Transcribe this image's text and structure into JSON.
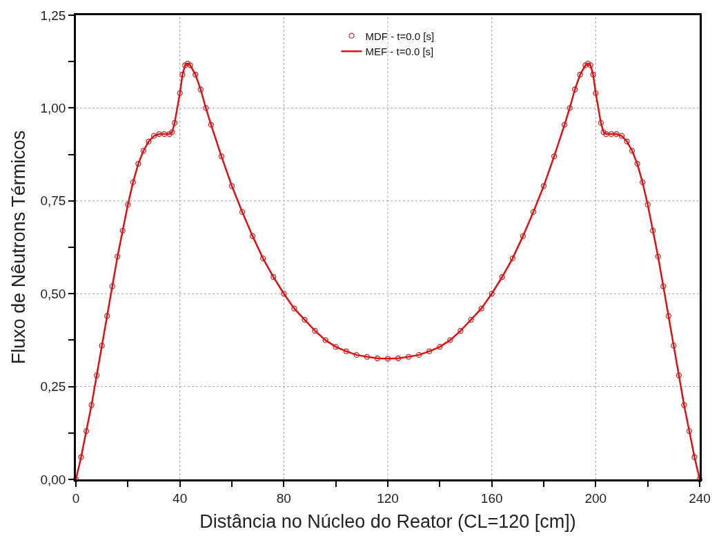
{
  "chart_data": {
    "type": "line",
    "xlabel": "Distância no Núcleo do Reator (CL=120 [cm])",
    "ylabel": "Fluxo de Nêutrons Térmicos",
    "x": [
      0,
      2,
      4,
      6,
      8,
      10,
      12,
      14,
      16,
      18,
      20,
      22,
      24,
      26,
      28,
      30,
      32,
      34,
      36,
      37,
      38,
      40,
      41,
      42,
      43,
      44,
      46,
      48,
      50,
      52,
      56,
      60,
      64,
      68,
      72,
      76,
      80,
      84,
      88,
      92,
      96,
      100,
      104,
      108,
      112,
      116,
      120,
      124,
      128,
      132,
      136,
      140,
      144,
      148,
      152,
      156,
      160,
      164,
      168,
      172,
      176,
      180,
      184,
      188,
      190,
      192,
      194,
      196,
      197,
      198,
      199,
      200,
      202,
      203,
      204,
      206,
      208,
      210,
      212,
      214,
      216,
      218,
      220,
      222,
      224,
      226,
      228,
      230,
      232,
      234,
      236,
      238,
      240
    ],
    "series": [
      {
        "name": "MDF - t=0.0 [s]",
        "type": "scatter",
        "marker": "circle",
        "color": "#c0282a",
        "values": [
          0,
          0.06,
          0.13,
          0.2,
          0.28,
          0.36,
          0.44,
          0.52,
          0.6,
          0.67,
          0.74,
          0.8,
          0.85,
          0.885,
          0.91,
          0.925,
          0.93,
          0.93,
          0.93,
          0.935,
          0.96,
          1.04,
          1.09,
          1.115,
          1.12,
          1.115,
          1.09,
          1.05,
          1.0,
          0.955,
          0.87,
          0.79,
          0.72,
          0.655,
          0.595,
          0.545,
          0.5,
          0.46,
          0.43,
          0.4,
          0.375,
          0.357,
          0.345,
          0.335,
          0.33,
          0.326,
          0.325,
          0.326,
          0.33,
          0.335,
          0.345,
          0.357,
          0.375,
          0.4,
          0.43,
          0.46,
          0.5,
          0.545,
          0.595,
          0.655,
          0.72,
          0.79,
          0.87,
          0.955,
          1.0,
          1.05,
          1.09,
          1.115,
          1.12,
          1.115,
          1.09,
          1.04,
          0.96,
          0.935,
          0.93,
          0.93,
          0.93,
          0.925,
          0.91,
          0.885,
          0.85,
          0.8,
          0.74,
          0.67,
          0.6,
          0.52,
          0.44,
          0.36,
          0.28,
          0.2,
          0.13,
          0.06,
          0
        ]
      },
      {
        "name": "MEF - t=0.0 [s]",
        "line_style": "solid",
        "color": "#e01010",
        "values": [
          0,
          0.06,
          0.13,
          0.2,
          0.28,
          0.36,
          0.44,
          0.52,
          0.6,
          0.67,
          0.74,
          0.8,
          0.85,
          0.885,
          0.91,
          0.925,
          0.93,
          0.93,
          0.93,
          0.935,
          0.96,
          1.04,
          1.09,
          1.115,
          1.12,
          1.115,
          1.09,
          1.05,
          1.0,
          0.955,
          0.87,
          0.79,
          0.72,
          0.655,
          0.595,
          0.545,
          0.5,
          0.46,
          0.43,
          0.4,
          0.375,
          0.357,
          0.345,
          0.335,
          0.33,
          0.326,
          0.325,
          0.326,
          0.33,
          0.335,
          0.345,
          0.357,
          0.375,
          0.4,
          0.43,
          0.46,
          0.5,
          0.545,
          0.595,
          0.655,
          0.72,
          0.79,
          0.87,
          0.955,
          1.0,
          1.05,
          1.09,
          1.115,
          1.12,
          1.115,
          1.09,
          1.04,
          0.96,
          0.935,
          0.93,
          0.93,
          0.93,
          0.925,
          0.91,
          0.885,
          0.85,
          0.8,
          0.74,
          0.67,
          0.6,
          0.52,
          0.44,
          0.36,
          0.28,
          0.2,
          0.13,
          0.06,
          0
        ]
      }
    ],
    "xlim": [
      0,
      240
    ],
    "xticks": [
      0,
      {
        "value": 20,
        "label": null
      },
      40,
      {
        "value": 60,
        "label": null
      },
      80,
      {
        "value": 100,
        "label": null
      },
      120,
      {
        "value": 140,
        "label": null
      },
      160,
      {
        "value": 180,
        "label": null
      },
      200,
      {
        "value": 220,
        "label": null
      },
      240
    ],
    "ylim": [
      0,
      1.25
    ],
    "yticks": [
      {
        "value": 0,
        "label": "0,00"
      },
      {
        "value": 0.125,
        "label": null
      },
      {
        "value": 0.25,
        "label": "0,25"
      },
      {
        "value": 0.375,
        "label": null
      },
      {
        "value": 0.5,
        "label": "0,50"
      },
      {
        "value": 0.625,
        "label": null
      },
      {
        "value": 0.75,
        "label": "0,75"
      },
      {
        "value": 0.875,
        "label": null
      },
      {
        "value": 1.0,
        "label": "1,00"
      },
      {
        "value": 1.125,
        "label": null
      },
      {
        "value": 1.25,
        "label": "1,25"
      }
    ],
    "grid": true,
    "legend": "top"
  }
}
